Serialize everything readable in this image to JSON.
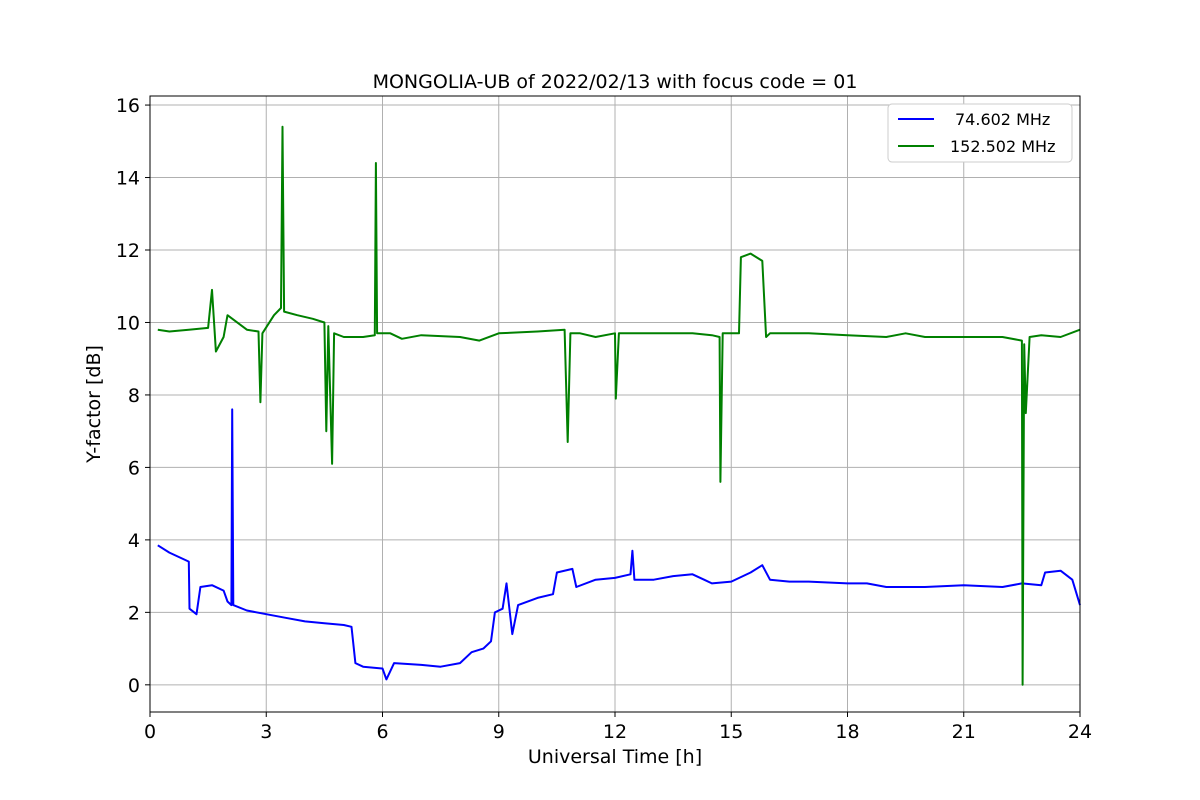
{
  "chart_data": {
    "type": "line",
    "title": "MONGOLIA-UB of 2022/02/13 with focus code = 01",
    "xlabel": "Universal Time [h]",
    "ylabel": "Y-factor [dB]",
    "xlim": [
      0,
      24
    ],
    "ylim": [
      -0.75,
      16.25
    ],
    "xticks": [
      0,
      3,
      6,
      9,
      12,
      15,
      18,
      21,
      24
    ],
    "yticks": [
      0,
      2,
      4,
      6,
      8,
      10,
      12,
      14,
      16
    ],
    "grid": true,
    "legend_position": "top-right",
    "series": [
      {
        "name": "74.602 MHz",
        "color": "#0000ff",
        "points": [
          [
            0.2,
            3.85
          ],
          [
            0.5,
            3.65
          ],
          [
            0.8,
            3.5
          ],
          [
            1.0,
            3.4
          ],
          [
            1.02,
            2.1
          ],
          [
            1.2,
            1.95
          ],
          [
            1.3,
            2.7
          ],
          [
            1.6,
            2.75
          ],
          [
            1.9,
            2.6
          ],
          [
            2.0,
            2.3
          ],
          [
            2.1,
            2.2
          ],
          [
            2.12,
            7.6
          ],
          [
            2.15,
            2.2
          ],
          [
            2.5,
            2.05
          ],
          [
            3.0,
            1.95
          ],
          [
            3.5,
            1.85
          ],
          [
            4.0,
            1.75
          ],
          [
            4.5,
            1.7
          ],
          [
            5.0,
            1.65
          ],
          [
            5.2,
            1.6
          ],
          [
            5.3,
            0.6
          ],
          [
            5.5,
            0.5
          ],
          [
            6.0,
            0.45
          ],
          [
            6.1,
            0.15
          ],
          [
            6.3,
            0.6
          ],
          [
            7.0,
            0.55
          ],
          [
            7.5,
            0.5
          ],
          [
            8.0,
            0.6
          ],
          [
            8.3,
            0.9
          ],
          [
            8.6,
            1.0
          ],
          [
            8.8,
            1.2
          ],
          [
            8.9,
            2.0
          ],
          [
            9.1,
            2.1
          ],
          [
            9.2,
            2.8
          ],
          [
            9.35,
            1.4
          ],
          [
            9.5,
            2.2
          ],
          [
            10.0,
            2.4
          ],
          [
            10.4,
            2.5
          ],
          [
            10.5,
            3.1
          ],
          [
            10.9,
            3.2
          ],
          [
            11.0,
            2.7
          ],
          [
            11.5,
            2.9
          ],
          [
            12.0,
            2.95
          ],
          [
            12.4,
            3.05
          ],
          [
            12.45,
            3.7
          ],
          [
            12.5,
            2.9
          ],
          [
            13.0,
            2.9
          ],
          [
            13.5,
            3.0
          ],
          [
            14.0,
            3.05
          ],
          [
            14.3,
            2.9
          ],
          [
            14.5,
            2.8
          ],
          [
            15.0,
            2.85
          ],
          [
            15.5,
            3.1
          ],
          [
            15.8,
            3.3
          ],
          [
            16.0,
            2.9
          ],
          [
            16.5,
            2.85
          ],
          [
            17.0,
            2.85
          ],
          [
            18.0,
            2.8
          ],
          [
            18.5,
            2.8
          ],
          [
            19.0,
            2.7
          ],
          [
            20.0,
            2.7
          ],
          [
            21.0,
            2.75
          ],
          [
            22.0,
            2.7
          ],
          [
            22.5,
            2.8
          ],
          [
            23.0,
            2.75
          ],
          [
            23.1,
            3.1
          ],
          [
            23.5,
            3.15
          ],
          [
            23.8,
            2.9
          ],
          [
            24.0,
            2.2
          ]
        ]
      },
      {
        "name": "152.502 MHz",
        "color": "#008000",
        "points": [
          [
            0.2,
            9.8
          ],
          [
            0.5,
            9.75
          ],
          [
            1.0,
            9.8
          ],
          [
            1.5,
            9.85
          ],
          [
            1.6,
            10.9
          ],
          [
            1.7,
            9.2
          ],
          [
            1.9,
            9.6
          ],
          [
            2.0,
            10.2
          ],
          [
            2.5,
            9.8
          ],
          [
            2.8,
            9.75
          ],
          [
            2.85,
            7.8
          ],
          [
            2.9,
            9.7
          ],
          [
            3.2,
            10.2
          ],
          [
            3.38,
            10.4
          ],
          [
            3.42,
            15.4
          ],
          [
            3.46,
            10.3
          ],
          [
            3.8,
            10.2
          ],
          [
            4.2,
            10.1
          ],
          [
            4.5,
            10.0
          ],
          [
            4.55,
            7.0
          ],
          [
            4.6,
            9.9
          ],
          [
            4.7,
            6.1
          ],
          [
            4.75,
            9.7
          ],
          [
            5.0,
            9.6
          ],
          [
            5.2,
            9.6
          ],
          [
            5.5,
            9.6
          ],
          [
            5.8,
            9.65
          ],
          [
            5.83,
            14.4
          ],
          [
            5.86,
            9.7
          ],
          [
            6.2,
            9.7
          ],
          [
            6.5,
            9.55
          ],
          [
            7.0,
            9.65
          ],
          [
            8.0,
            9.6
          ],
          [
            8.5,
            9.5
          ],
          [
            9.0,
            9.7
          ],
          [
            10.0,
            9.75
          ],
          [
            10.7,
            9.8
          ],
          [
            10.78,
            6.7
          ],
          [
            10.85,
            9.7
          ],
          [
            11.1,
            9.7
          ],
          [
            11.5,
            9.6
          ],
          [
            12.0,
            9.7
          ],
          [
            12.02,
            7.9
          ],
          [
            12.1,
            9.7
          ],
          [
            13.0,
            9.7
          ],
          [
            13.5,
            9.7
          ],
          [
            14.0,
            9.7
          ],
          [
            14.5,
            9.65
          ],
          [
            14.7,
            9.6
          ],
          [
            14.72,
            5.6
          ],
          [
            14.78,
            9.7
          ],
          [
            15.0,
            9.7
          ],
          [
            15.2,
            9.7
          ],
          [
            15.25,
            11.8
          ],
          [
            15.5,
            11.9
          ],
          [
            15.8,
            11.7
          ],
          [
            15.9,
            9.6
          ],
          [
            16.0,
            9.7
          ],
          [
            17.0,
            9.7
          ],
          [
            18.0,
            9.65
          ],
          [
            19.0,
            9.6
          ],
          [
            19.5,
            9.7
          ],
          [
            20.0,
            9.6
          ],
          [
            20.5,
            9.6
          ],
          [
            21.0,
            9.6
          ],
          [
            22.0,
            9.6
          ],
          [
            22.5,
            9.5
          ],
          [
            22.52,
            0.0
          ],
          [
            22.56,
            9.4
          ],
          [
            22.6,
            7.5
          ],
          [
            22.7,
            9.6
          ],
          [
            23.0,
            9.65
          ],
          [
            23.5,
            9.6
          ],
          [
            24.0,
            9.8
          ]
        ]
      }
    ]
  }
}
